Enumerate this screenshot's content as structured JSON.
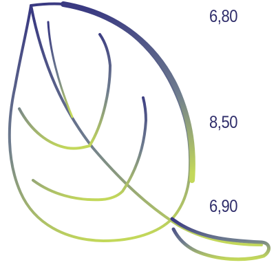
{
  "values": [
    "6,80",
    "8,50",
    "6,90"
  ],
  "colors": {
    "text": "#2e2c6a",
    "leaf_top": "#3a3a82",
    "leaf_mid": "#6f7d8e",
    "leaf_bottom": "#c3d85a"
  },
  "graphic": {
    "icon": "leaf-icon"
  }
}
